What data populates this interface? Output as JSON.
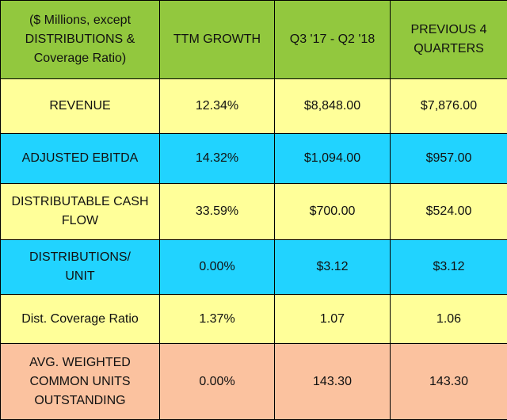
{
  "colors": {
    "header": "#92c83e",
    "yellow": "#ffff99",
    "blue": "#21d3ff",
    "peach": "#fbc29f"
  },
  "header": {
    "label": "($ Millions, except\nDISTRIBUTIONS &\nCoverage Ratio)",
    "ttm_growth": "TTM GROWTH",
    "current_period": "Q3 '17 - Q2 '18",
    "previous_period": "PREVIOUS 4\nQUARTERS"
  },
  "rows": [
    {
      "metric": "REVENUE",
      "ttm_growth": "12.34%",
      "current": "$8,848.00",
      "previous": "$7,876.00",
      "color": "#ffff99"
    },
    {
      "metric": "ADJUSTED EBITDA",
      "ttm_growth": "14.32%",
      "current": "$1,094.00",
      "previous": "$957.00",
      "color": "#21d3ff"
    },
    {
      "metric": "DISTRIBUTABLE CASH\nFLOW",
      "ttm_growth": "33.59%",
      "current": "$700.00",
      "previous": "$524.00",
      "color": "#ffff99"
    },
    {
      "metric": "DISTRIBUTIONS/\nUNIT",
      "ttm_growth": "0.00%",
      "current": "$3.12",
      "previous": "$3.12",
      "color": "#21d3ff"
    },
    {
      "metric": "Dist. Coverage Ratio",
      "ttm_growth": "1.37%",
      "current": "1.07",
      "previous": "1.06",
      "color": "#ffff99"
    },
    {
      "metric": "AVG. WEIGHTED\nCOMMON UNITS\nOUTSTANDING",
      "ttm_growth": "0.00%",
      "current": "143.30",
      "previous": "143.30",
      "color": "#fbc29f"
    }
  ]
}
